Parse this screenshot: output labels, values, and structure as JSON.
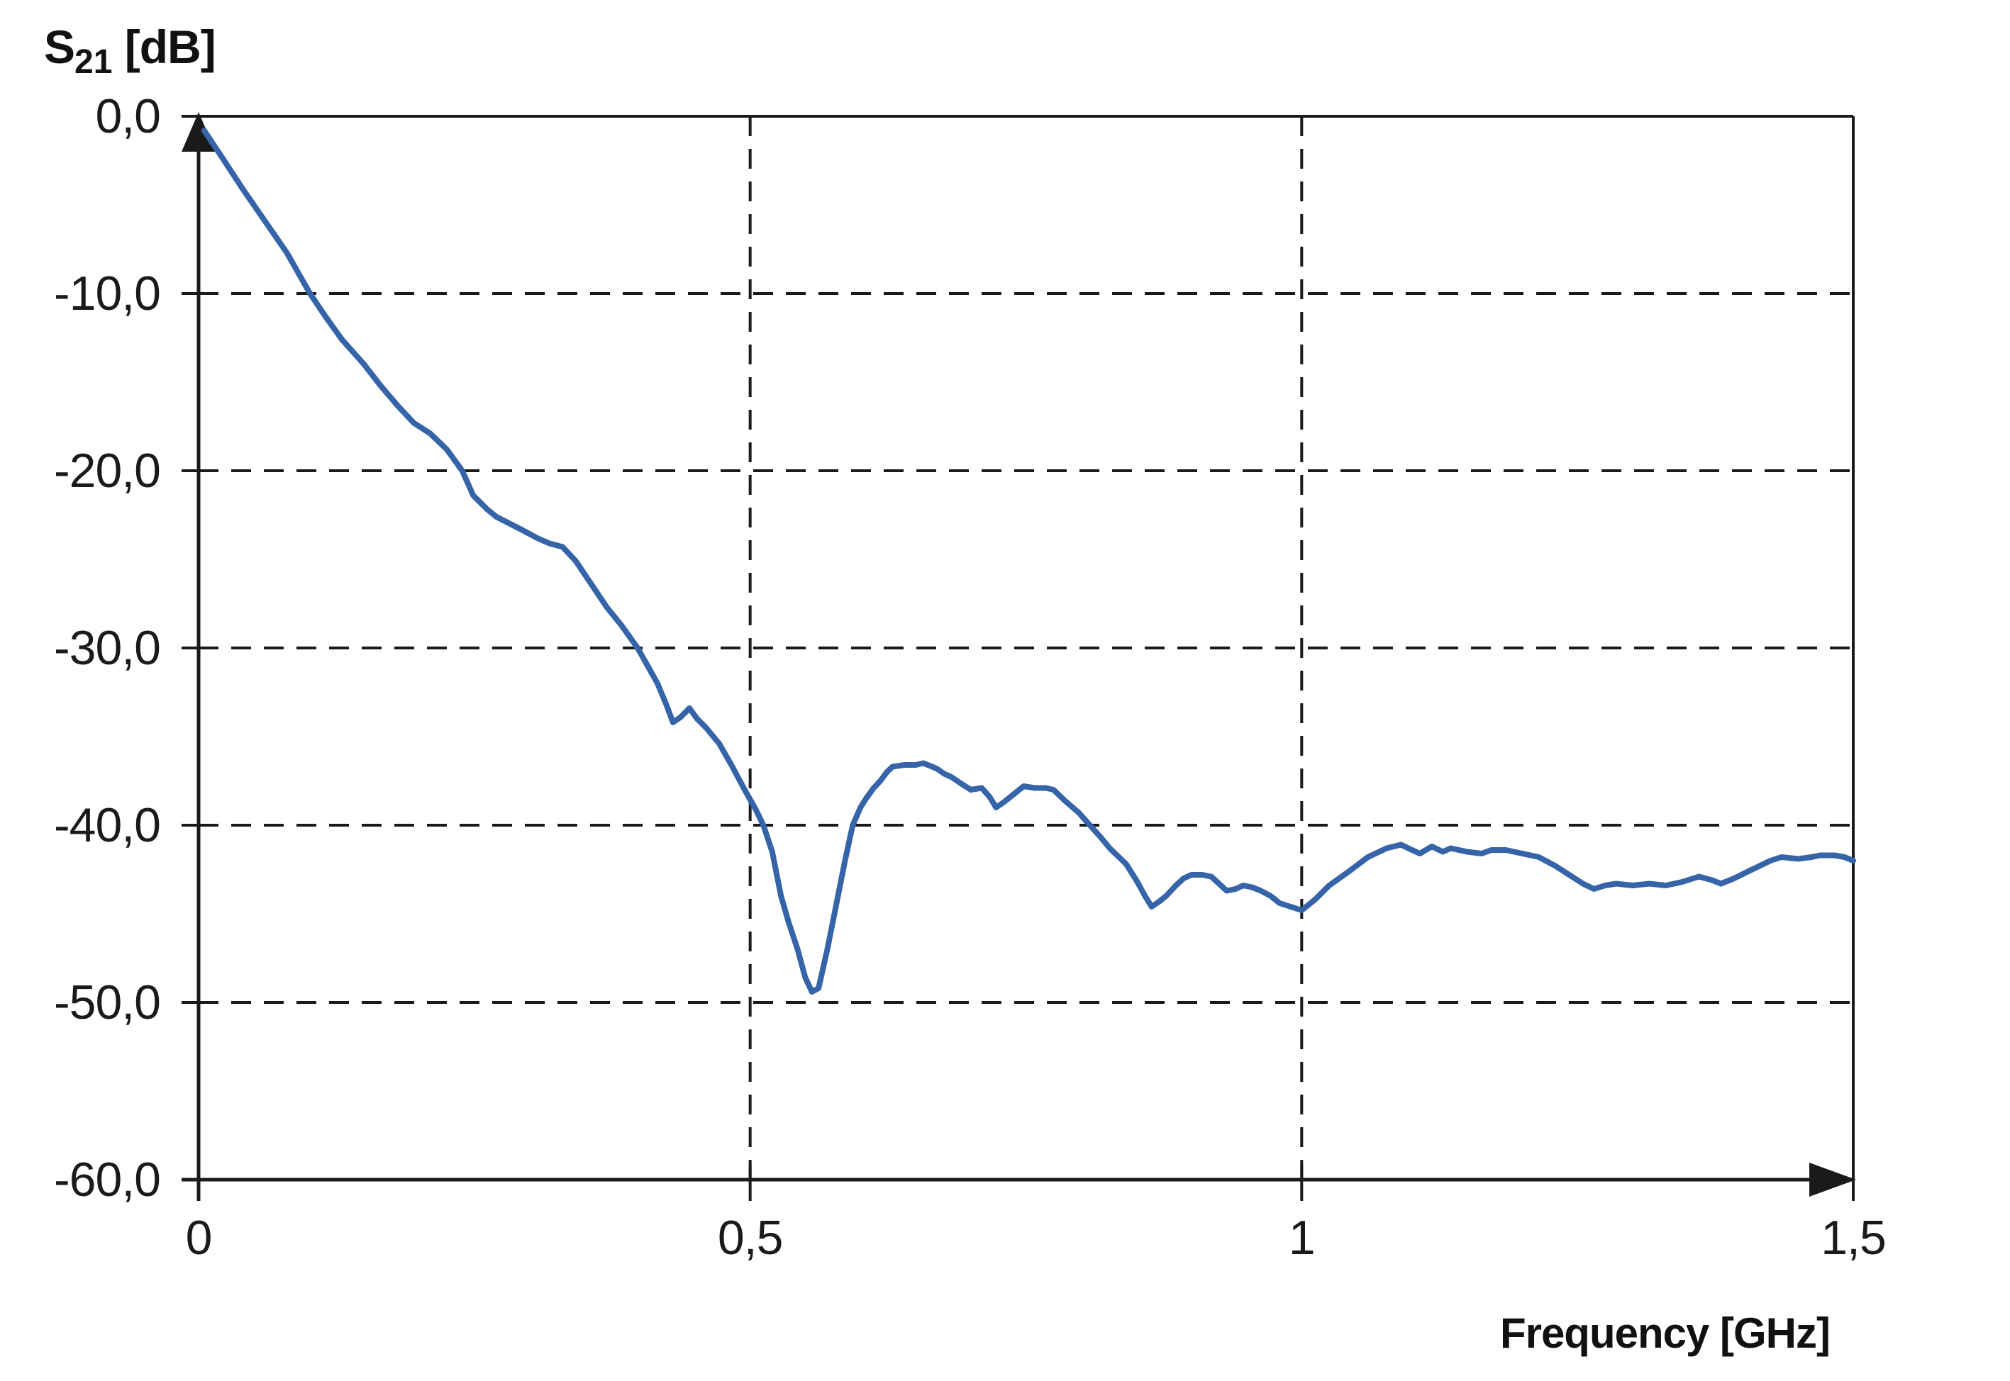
{
  "y_axis_title": {
    "base": "S",
    "sub": "21",
    "unit": " [dB]"
  },
  "x_axis_label": "Frequency [GHz]",
  "colors": {
    "background": "#ffffff",
    "curve": "#3564a8",
    "axis": "#1a1a1a",
    "grid": "#1a1a1a",
    "text": "#1a1a1a"
  },
  "chart_data": {
    "type": "line",
    "title": "",
    "xlabel": "Frequency [GHz]",
    "ylabel": "S21 [dB]",
    "xlim": [
      0,
      1.5
    ],
    "ylim": [
      -60,
      0
    ],
    "grid": "dashed",
    "legend": "none",
    "x_tick_values": [
      0,
      0.5,
      1,
      1.5
    ],
    "x_tick_labels": [
      "0",
      "0,5",
      "1",
      "1,5"
    ],
    "y_tick_values": [
      0,
      -10,
      -20,
      -30,
      -40,
      -50,
      -60
    ],
    "y_tick_labels": [
      "0,0",
      "-10,0",
      "-20,0",
      "-30,0",
      "-40,0",
      "-50,0",
      "-60,0"
    ],
    "series": [
      {
        "name": "S21",
        "color": "#3564a8",
        "x": [
          0.005,
          0.02,
          0.04,
          0.06,
          0.08,
          0.101,
          0.115,
          0.13,
          0.15,
          0.165,
          0.18,
          0.195,
          0.21,
          0.225,
          0.239,
          0.249,
          0.262,
          0.27,
          0.292,
          0.307,
          0.318,
          0.33,
          0.342,
          0.356,
          0.37,
          0.383,
          0.398,
          0.407,
          0.416,
          0.424,
          0.43,
          0.437,
          0.445,
          0.452,
          0.46,
          0.472,
          0.483,
          0.495,
          0.505,
          0.512,
          0.52,
          0.528,
          0.535,
          0.543,
          0.55,
          0.556,
          0.562,
          0.57,
          0.578,
          0.586,
          0.593,
          0.6,
          0.605,
          0.612,
          0.618,
          0.624,
          0.629,
          0.64,
          0.65,
          0.657,
          0.669,
          0.676,
          0.683,
          0.69,
          0.7,
          0.71,
          0.717,
          0.723,
          0.73,
          0.74,
          0.748,
          0.758,
          0.768,
          0.775,
          0.785,
          0.798,
          0.808,
          0.818,
          0.826,
          0.841,
          0.851,
          0.858,
          0.864,
          0.871,
          0.877,
          0.886,
          0.893,
          0.9,
          0.91,
          0.918,
          0.925,
          0.932,
          0.94,
          0.947,
          0.955,
          0.963,
          0.972,
          0.98,
          0.99,
          1.0,
          1.012,
          1.025,
          1.043,
          1.06,
          1.077,
          1.09,
          1.1,
          1.107,
          1.118,
          1.128,
          1.135,
          1.15,
          1.163,
          1.172,
          1.185,
          1.2,
          1.215,
          1.23,
          1.245,
          1.255,
          1.265,
          1.275,
          1.285,
          1.3,
          1.315,
          1.33,
          1.345,
          1.36,
          1.372,
          1.38,
          1.392,
          1.405,
          1.415,
          1.425,
          1.435,
          1.45,
          1.462,
          1.47,
          1.483,
          1.492,
          1.5
        ],
        "y": [
          -0.8,
          -2.2,
          -4.1,
          -5.9,
          -7.7,
          -10.0,
          -11.3,
          -12.6,
          -14.0,
          -15.2,
          -16.3,
          -17.3,
          -17.9,
          -18.8,
          -20.0,
          -21.4,
          -22.2,
          -22.6,
          -23.3,
          -23.8,
          -24.1,
          -24.3,
          -25.1,
          -26.4,
          -27.7,
          -28.7,
          -30.0,
          -31.0,
          -32.0,
          -33.2,
          -34.2,
          -33.9,
          -33.4,
          -34.0,
          -34.5,
          -35.4,
          -36.6,
          -38.0,
          -39.1,
          -40.0,
          -41.5,
          -44.0,
          -45.5,
          -47.0,
          -48.6,
          -49.4,
          -49.2,
          -47.0,
          -44.5,
          -42.0,
          -40.0,
          -39.0,
          -38.5,
          -37.9,
          -37.5,
          -37.0,
          -36.7,
          -36.6,
          -36.6,
          -36.5,
          -36.8,
          -37.1,
          -37.3,
          -37.6,
          -38.0,
          -37.9,
          -38.4,
          -39.0,
          -38.7,
          -38.2,
          -37.8,
          -37.9,
          -37.9,
          -38.0,
          -38.6,
          -39.3,
          -40.0,
          -40.7,
          -41.3,
          -42.2,
          -43.2,
          -44.0,
          -44.6,
          -44.3,
          -44.0,
          -43.4,
          -43.0,
          -42.8,
          -42.8,
          -42.9,
          -43.3,
          -43.7,
          -43.6,
          -43.4,
          -43.5,
          -43.7,
          -44.0,
          -44.4,
          -44.6,
          -44.8,
          -44.2,
          -43.4,
          -42.6,
          -41.8,
          -41.3,
          -41.1,
          -41.4,
          -41.6,
          -41.2,
          -41.5,
          -41.3,
          -41.5,
          -41.6,
          -41.4,
          -41.4,
          -41.6,
          -41.8,
          -42.3,
          -42.9,
          -43.3,
          -43.6,
          -43.4,
          -43.3,
          -43.4,
          -43.3,
          -43.4,
          -43.2,
          -42.9,
          -43.1,
          -43.3,
          -43.0,
          -42.6,
          -42.3,
          -42.0,
          -41.8,
          -41.9,
          -41.8,
          -41.7,
          -41.7,
          -41.8,
          -42.0
        ]
      }
    ]
  }
}
